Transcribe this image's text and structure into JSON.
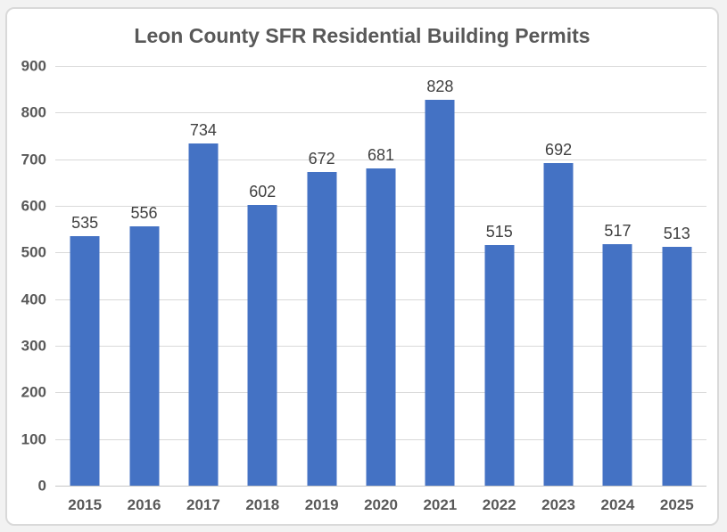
{
  "window": {
    "background_color": "#F2F2F2",
    "frame_border_color": "#D9D9D9",
    "plot_background_color": "#FFFFFF"
  },
  "chart_data": {
    "type": "bar",
    "title": "Leon County SFR Residential Building Permits",
    "categories": [
      "2015",
      "2016",
      "2017",
      "2018",
      "2019",
      "2020",
      "2021",
      "2022",
      "2023",
      "2024",
      "2025"
    ],
    "values": [
      535,
      556,
      734,
      602,
      672,
      681,
      828,
      515,
      692,
      517,
      513
    ],
    "xlabel": "",
    "ylabel": "",
    "ylim": [
      0,
      900
    ],
    "yticks": [
      0,
      100,
      200,
      300,
      400,
      500,
      600,
      700,
      800,
      900
    ],
    "grid": true,
    "legend": false,
    "data_labels_shown": true,
    "colors": {
      "bar": "#4472C4",
      "gridline": "#D9D9D9",
      "axis_line": "#C6C6C6",
      "title": "#595959",
      "axis_labels": "#595959",
      "data_labels": "#404040"
    }
  }
}
